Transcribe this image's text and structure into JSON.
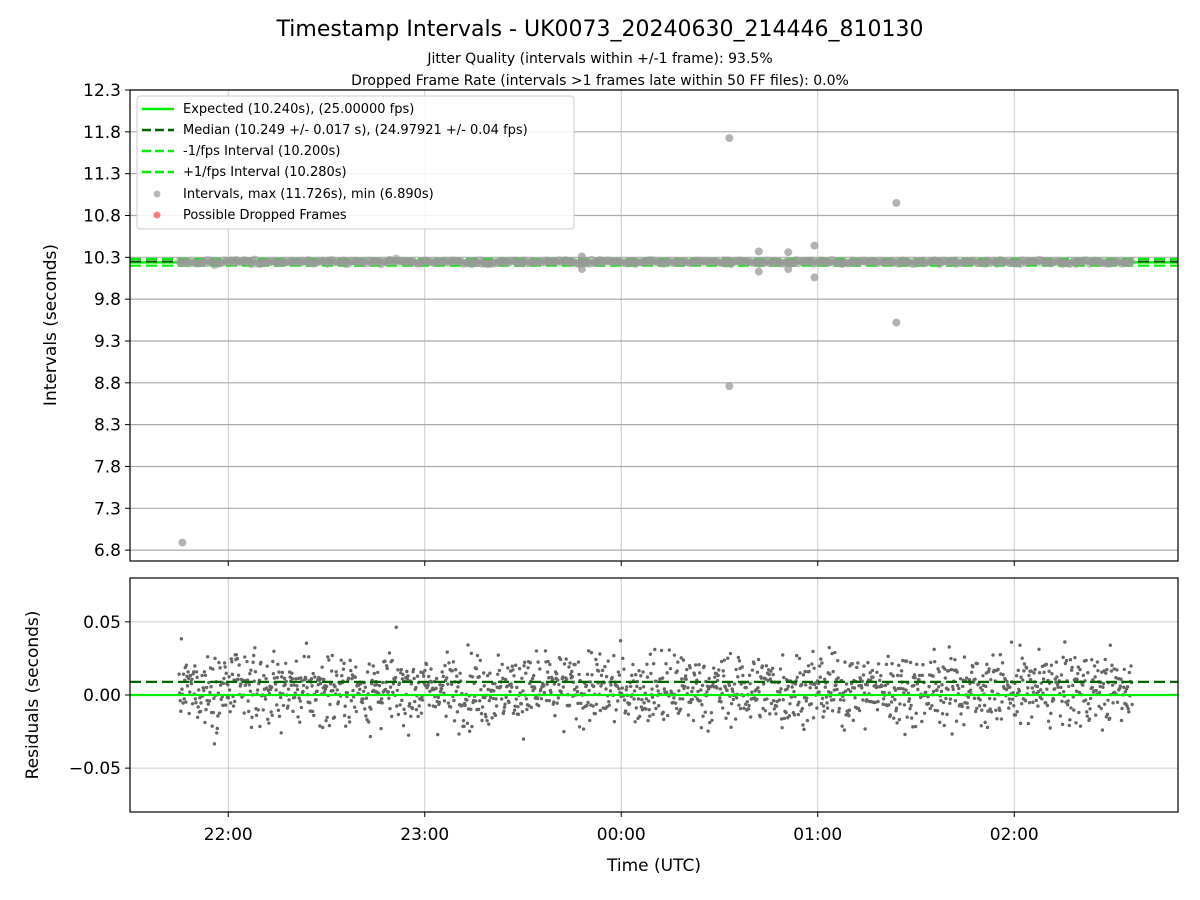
{
  "chart_data": {
    "type": "scatter",
    "title": "Timestamp Intervals - UK0073_20240630_214446_810130",
    "subtitle_lines": [
      "Jitter Quality (intervals within +/-1 frame): 93.5%",
      "Dropped Frame Rate (intervals >1 frames late within 50 FF files): 0.0%"
    ],
    "xlabel": "Time (UTC)",
    "x_tick_labels": [
      "22:00",
      "23:00",
      "00:00",
      "01:00",
      "02:00"
    ],
    "x_ticks": [
      "2024-06-30 22:00",
      "2024-06-30 23:00",
      "2024-07-01 00:00",
      "2024-07-01 01:00",
      "2024-07-01 02:00"
    ],
    "x_range": [
      "2024-06-30 21:30",
      "2024-07-01 02:50"
    ],
    "data_time_range": [
      "2024-06-30 21:45",
      "2024-07-01 02:36"
    ],
    "grid": true,
    "panels": [
      {
        "name": "intervals",
        "ylabel": "Intervals (seconds)",
        "ylim": [
          6.67,
          12.3
        ],
        "y_ticks": [
          6.8,
          7.3,
          7.8,
          8.3,
          8.8,
          9.3,
          9.8,
          10.3,
          10.8,
          11.3,
          11.8,
          12.3
        ],
        "y_tick_labels": [
          "6.8",
          "7.3",
          "7.8",
          "8.3",
          "8.8",
          "9.3",
          "9.8",
          "10.3",
          "10.8",
          "11.3",
          "11.8",
          "12.3"
        ],
        "lines": [
          {
            "label": "Expected (10.240s), (25.00000 fps)",
            "y": 10.24,
            "color": "#00ee00",
            "style": "solid"
          },
          {
            "label": "Median (10.249 +/- 0.017 s), (24.97921 +/- 0.04 fps)",
            "y": 10.249,
            "color": "#006400",
            "style": "dashed"
          },
          {
            "label": "-1/fps Interval (10.200s)",
            "y": 10.2,
            "color": "#00ee00",
            "style": "dashed"
          },
          {
            "label": "+1/fps Interval (10.280s)",
            "y": 10.28,
            "color": "#00ee00",
            "style": "dashed"
          }
        ],
        "scatter_series": [
          {
            "label": "Intervals, max (11.726s), min (6.890s)",
            "color": "#999999"
          },
          {
            "label": "Possible Dropped Frames",
            "color": "#ff4444"
          }
        ],
        "outliers": [
          {
            "x": "2024-06-30 21:46",
            "y": 6.89
          },
          {
            "x": "2024-07-01 00:33",
            "y": 11.726
          },
          {
            "x": "2024-07-01 00:33",
            "y": 8.76
          },
          {
            "x": "2024-07-01 01:24",
            "y": 10.95
          },
          {
            "x": "2024-07-01 01:24",
            "y": 9.52
          },
          {
            "x": "2024-07-01 00:59",
            "y": 10.44
          },
          {
            "x": "2024-07-01 00:59",
            "y": 10.06
          },
          {
            "x": "2024-07-01 00:42",
            "y": 10.37
          },
          {
            "x": "2024-07-01 00:42",
            "y": 10.13
          },
          {
            "x": "2024-07-01 00:51",
            "y": 10.36
          },
          {
            "x": "2024-07-01 00:51",
            "y": 10.16
          },
          {
            "x": "2024-06-30 23:48",
            "y": 10.16
          },
          {
            "x": "2024-06-30 23:48",
            "y": 10.31
          }
        ]
      },
      {
        "name": "residuals",
        "ylabel": "Residuals (seconds)",
        "ylim": [
          -0.08,
          0.08
        ],
        "y_ticks": [
          -0.05,
          0.0,
          0.05
        ],
        "y_tick_labels": [
          "−0.05",
          "0.00",
          "0.05"
        ],
        "lines": [
          {
            "y": 0.0,
            "color": "#00ee00",
            "style": "solid"
          },
          {
            "y": 0.009,
            "color": "#006400",
            "style": "dashed"
          }
        ],
        "scatter_color": "#666666",
        "residual_spread_std": 0.017
      }
    ]
  }
}
